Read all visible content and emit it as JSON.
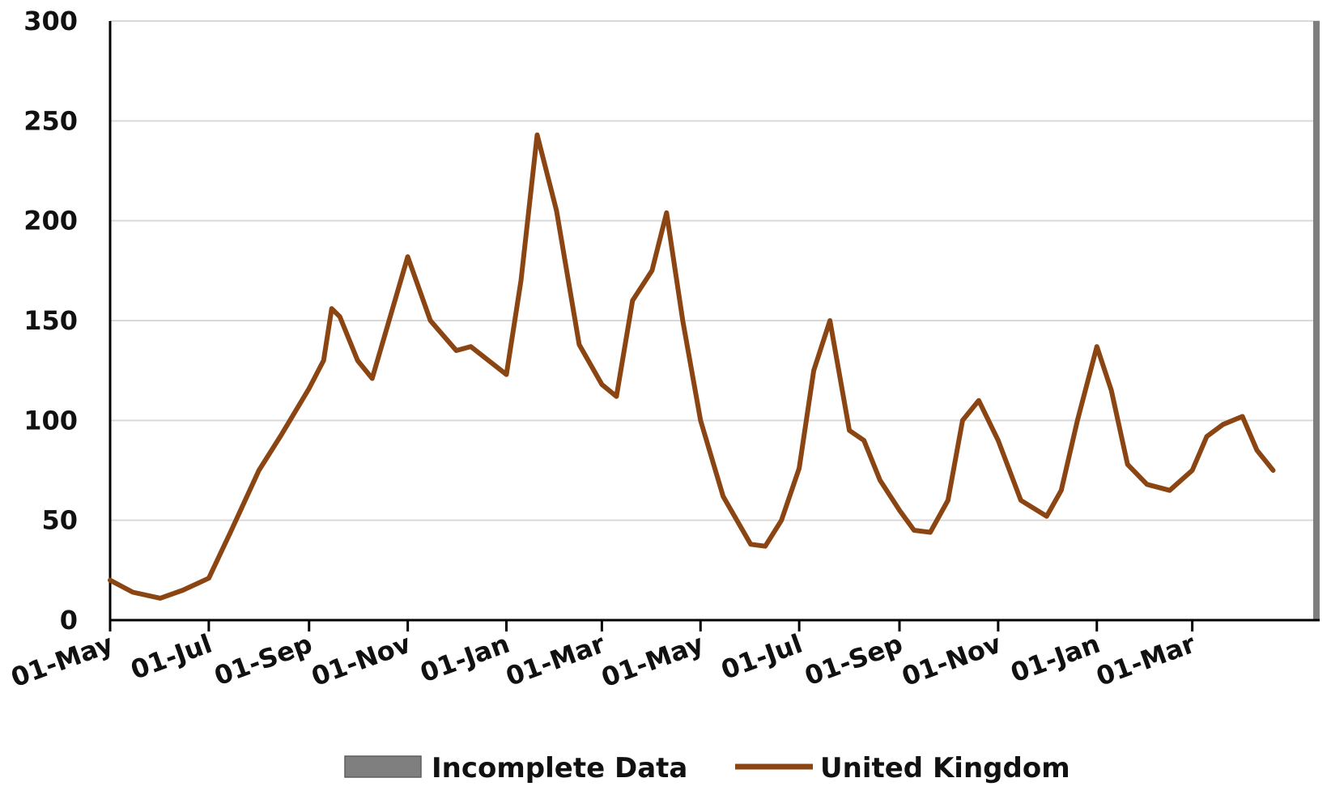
{
  "chart_data": {
    "type": "line",
    "ylim": [
      0,
      300
    ],
    "yticks": [
      "0",
      "50",
      "100",
      "150",
      "200",
      "250",
      "300"
    ],
    "xticks": [
      "01-May",
      "01-Jul",
      "01-Sep",
      "01-Nov",
      "01-Jan",
      "01-Mar",
      "01-May",
      "01-Jul",
      "01-Sep",
      "01-Nov",
      "01-Jan",
      "01-Mar"
    ],
    "grid": true,
    "legend": {
      "position": "bottom",
      "incomplete_label": "Incomplete Data",
      "series_label": "United Kingdom"
    },
    "colors": {
      "series": "#8B4513",
      "incomplete": "#7f7f7f",
      "grid": "#d9d9d9",
      "axis": "#000000"
    },
    "series": [
      {
        "name": "United Kingdom",
        "x": [
          "01-May",
          "15-May",
          "01-Jun",
          "15-Jun",
          "01-Jul",
          "15-Jul",
          "01-Aug",
          "15-Aug",
          "01-Sep",
          "10-Sep",
          "15-Sep",
          "20-Sep",
          "01-Oct",
          "10-Oct",
          "01-Nov",
          "15-Nov",
          "01-Dec",
          "10-Dec",
          "01-Jan",
          "10-Jan",
          "20-Jan",
          "01-Feb",
          "15-Feb",
          "01-Mar",
          "10-Mar",
          "20-Mar",
          "01-Apr",
          "10-Apr",
          "20-Apr",
          "01-May",
          "15-May",
          "01-Jun",
          "10-Jun",
          "20-Jun",
          "01-Jul",
          "10-Jul",
          "20-Jul",
          "01-Aug",
          "10-Aug",
          "20-Aug",
          "01-Sep",
          "10-Sep",
          "20-Sep",
          "01-Oct",
          "10-Oct",
          "20-Oct",
          "01-Nov",
          "15-Nov",
          "01-Dec",
          "10-Dec",
          "20-Dec",
          "01-Jan",
          "10-Jan",
          "20-Jan",
          "01-Feb",
          "15-Feb",
          "01-Mar",
          "10-Mar",
          "20-Mar",
          "01-Apr",
          "10-Apr",
          "20-Apr"
        ],
        "values": [
          20,
          14,
          11,
          15,
          21,
          45,
          75,
          93,
          116,
          130,
          156,
          152,
          130,
          121,
          182,
          150,
          135,
          137,
          123,
          170,
          243,
          205,
          138,
          118,
          112,
          160,
          175,
          204,
          150,
          100,
          62,
          38,
          37,
          50,
          76,
          125,
          150,
          95,
          90,
          70,
          55,
          45,
          44,
          60,
          100,
          110,
          90,
          60,
          52,
          65,
          100,
          137,
          115,
          78,
          68,
          65,
          75,
          92,
          98,
          102,
          85,
          75
        ]
      }
    ]
  }
}
